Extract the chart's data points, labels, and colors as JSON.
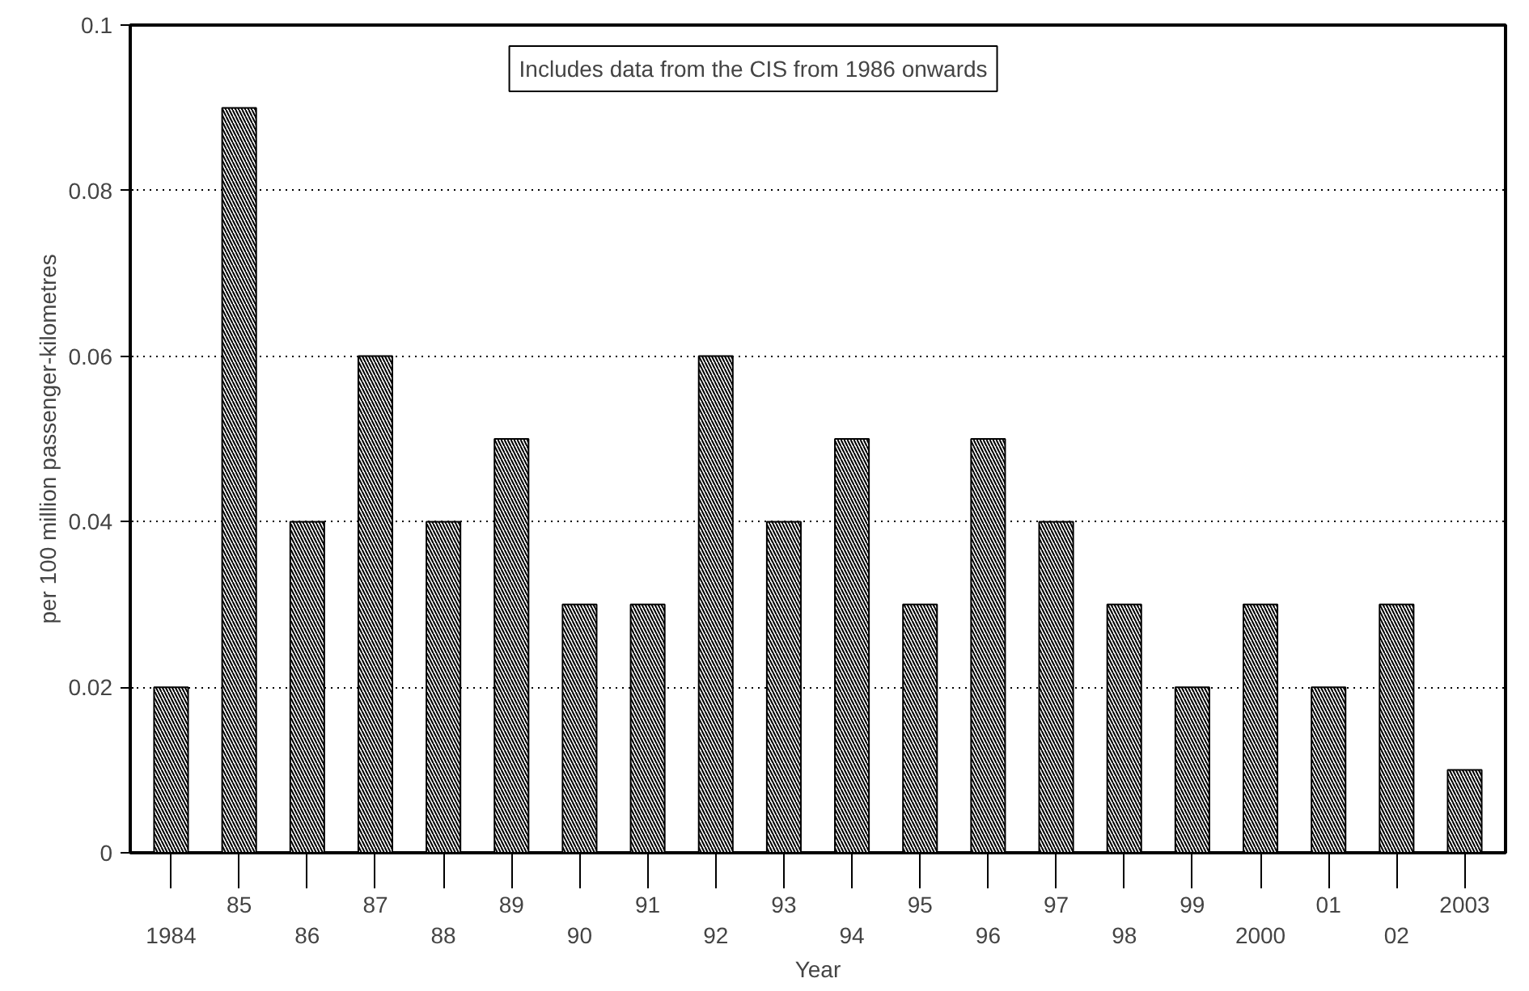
{
  "chart_data": {
    "type": "bar",
    "xlabel": "Year",
    "ylabel": "per 100 million passenger-kilometres",
    "categories": [
      "1984",
      "85",
      "86",
      "87",
      "88",
      "89",
      "90",
      "91",
      "92",
      "93",
      "94",
      "95",
      "96",
      "97",
      "98",
      "99",
      "2000",
      "01",
      "02",
      "2003"
    ],
    "values": [
      0.02,
      0.09,
      0.04,
      0.06,
      0.04,
      0.05,
      0.03,
      0.03,
      0.06,
      0.04,
      0.05,
      0.03,
      0.05,
      0.04,
      0.03,
      0.02,
      0.03,
      0.02,
      0.03,
      0.01
    ],
    "color": "#000000",
    "ylim": [
      0,
      0.1
    ],
    "yticks": [
      0,
      0.02,
      0.04,
      0.06,
      0.08,
      0.1
    ],
    "grid": "y",
    "annotations": [
      "Includes data from the CIS from 1986 onwards"
    ]
  }
}
